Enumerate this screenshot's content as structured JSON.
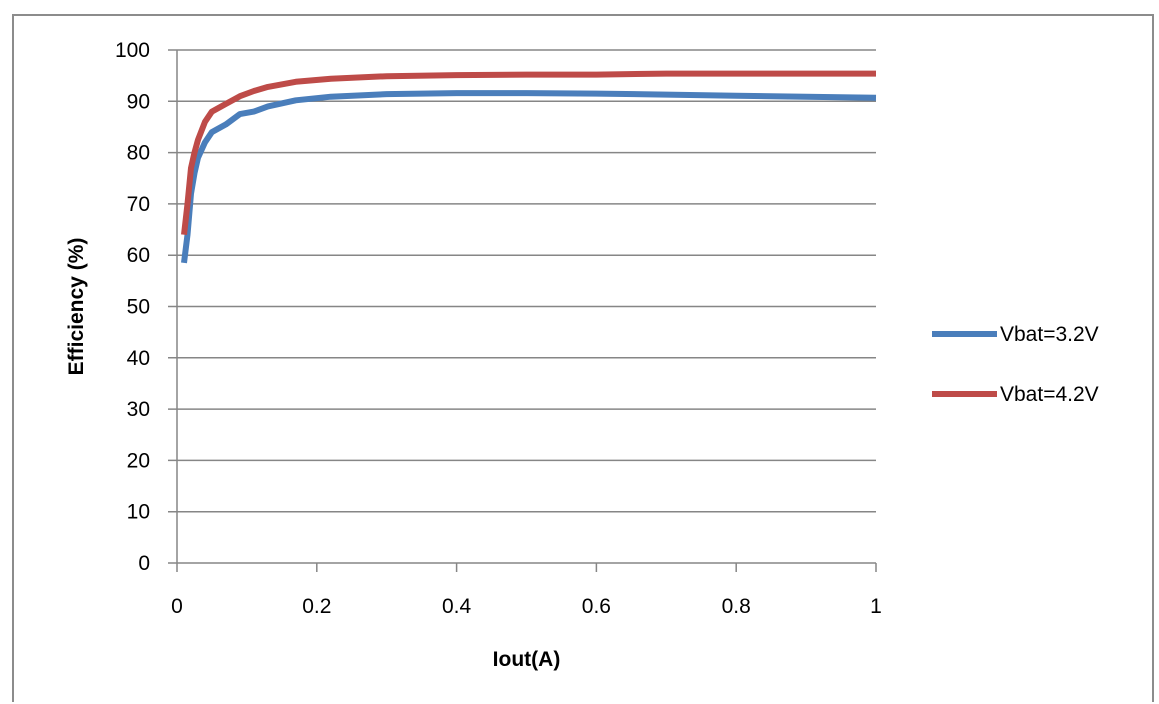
{
  "chart_data": {
    "type": "line",
    "xlabel": "Iout(A)",
    "ylabel": "Efficiency (%)",
    "xlim": [
      0,
      1
    ],
    "ylim": [
      0,
      100
    ],
    "xticks": [
      "0",
      "0.2",
      "0.4",
      "0.6",
      "0.8",
      "1"
    ],
    "yticks": [
      "0",
      "10",
      "20",
      "30",
      "40",
      "50",
      "60",
      "70",
      "80",
      "90",
      "100"
    ],
    "grid": "horizontal",
    "legend_position": "right",
    "series": [
      {
        "name": "Vbat=3.2V",
        "color": "#4a7ebb",
        "points": [
          [
            0.01,
            58.5
          ],
          [
            0.015,
            64
          ],
          [
            0.02,
            72
          ],
          [
            0.025,
            76
          ],
          [
            0.03,
            79
          ],
          [
            0.04,
            82
          ],
          [
            0.05,
            84
          ],
          [
            0.07,
            85.5
          ],
          [
            0.09,
            87.5
          ],
          [
            0.11,
            88
          ],
          [
            0.13,
            89
          ],
          [
            0.17,
            90.2
          ],
          [
            0.22,
            90.9
          ],
          [
            0.3,
            91.4
          ],
          [
            0.4,
            91.6
          ],
          [
            0.5,
            91.6
          ],
          [
            0.6,
            91.5
          ],
          [
            0.7,
            91.3
          ],
          [
            0.8,
            91.1
          ],
          [
            0.9,
            90.9
          ],
          [
            1.0,
            90.7
          ]
        ]
      },
      {
        "name": "Vbat=4.2V",
        "color": "#be4b48",
        "points": [
          [
            0.01,
            64
          ],
          [
            0.015,
            70
          ],
          [
            0.02,
            77
          ],
          [
            0.025,
            80
          ],
          [
            0.03,
            82.5
          ],
          [
            0.04,
            86
          ],
          [
            0.05,
            88
          ],
          [
            0.07,
            89.5
          ],
          [
            0.09,
            91
          ],
          [
            0.11,
            92
          ],
          [
            0.13,
            92.8
          ],
          [
            0.17,
            93.8
          ],
          [
            0.22,
            94.4
          ],
          [
            0.3,
            94.9
          ],
          [
            0.4,
            95.1
          ],
          [
            0.5,
            95.2
          ],
          [
            0.6,
            95.2
          ],
          [
            0.7,
            95.4
          ],
          [
            0.8,
            95.4
          ],
          [
            0.9,
            95.4
          ],
          [
            1.0,
            95.4
          ]
        ]
      }
    ]
  }
}
